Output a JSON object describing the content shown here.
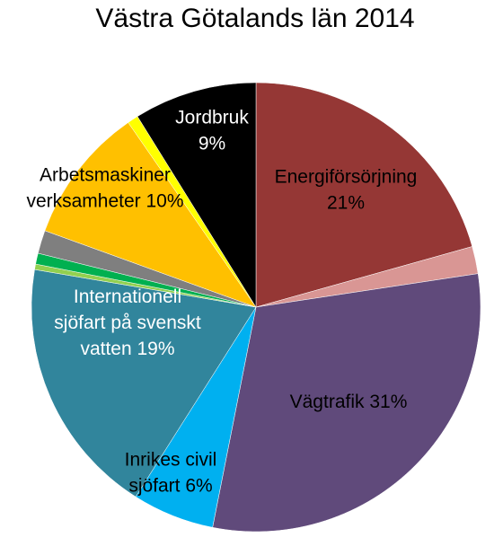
{
  "chart_data": {
    "type": "pie",
    "title": "Västra Götalands län 2014",
    "slices": [
      {
        "name": "Energiförsörjning",
        "value": 21,
        "color": "#953735",
        "label_lines": [
          "Energiförsörjning",
          "21%"
        ],
        "label_color": "#000000"
      },
      {
        "name": "",
        "value": 2,
        "color": "#d99694",
        "label_lines": [],
        "label_color": "#000000"
      },
      {
        "name": "Vägtrafik",
        "value": 31,
        "color": "#604a7b",
        "label_lines": [
          "Vägtrafik 31%"
        ],
        "label_color": "#000000"
      },
      {
        "name": "Inrikes civil sjöfart",
        "value": 6,
        "color": "#00b0f0",
        "label_lines": [
          "Inrikes civil",
          "sjöfart 6%"
        ],
        "label_color": "#000000"
      },
      {
        "name": "Internationell sjöfart på svenskt vatten",
        "value": 19,
        "color": "#31859c",
        "label_lines": [
          "Internationell",
          "sjöfart på svenskt",
          "vatten 19%"
        ],
        "label_color": "#ffffff"
      },
      {
        "name": "",
        "value": 0.4,
        "color": "#92d050",
        "label_lines": [],
        "label_color": "#000000"
      },
      {
        "name": "",
        "value": 0.8,
        "color": "#00b050",
        "label_lines": [],
        "label_color": "#000000"
      },
      {
        "name": "",
        "value": 1.7,
        "color": "#7f7f7f",
        "label_lines": [],
        "label_color": "#000000"
      },
      {
        "name": "Arbetsmaskiner verksamheter",
        "value": 10,
        "color": "#ffc000",
        "label_lines": [
          "Arbetsmaskiner",
          "verksamheter 10%"
        ],
        "label_color": "#000000"
      },
      {
        "name": "",
        "value": 0.8,
        "color": "#ffff00",
        "label_lines": [],
        "label_color": "#000000"
      },
      {
        "name": "Jordbruk",
        "value": 9,
        "color": "#000000",
        "label_lines": [
          "Jordbruk",
          "9%"
        ],
        "label_color": "#ffffff"
      }
    ]
  }
}
